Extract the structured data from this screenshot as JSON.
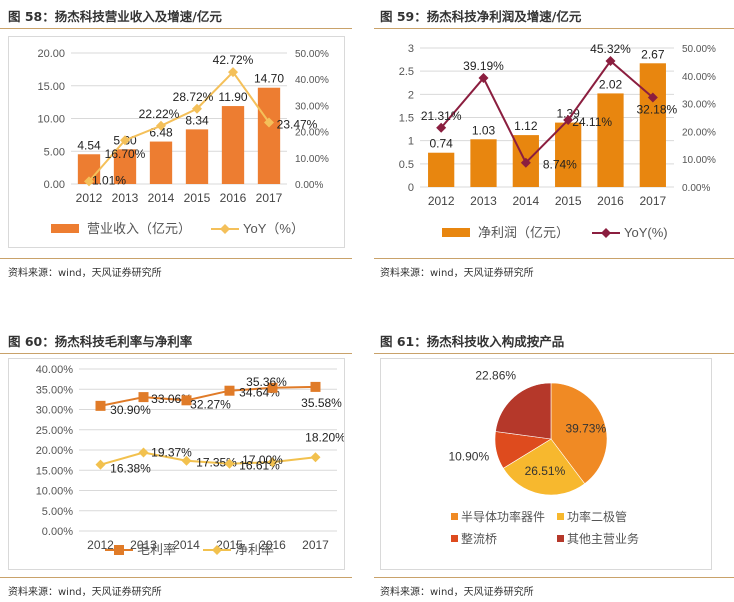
{
  "source_note": "资料来源：wind，天风证券研究所",
  "chart_data": [
    {
      "id": "fig58",
      "type": "bar",
      "title": "图 58：扬杰科技营业收入及增速/亿元",
      "categories": [
        "2012",
        "2013",
        "2014",
        "2015",
        "2016",
        "2017"
      ],
      "series": [
        {
          "name": "营业收入（亿元）",
          "kind": "bar",
          "axis": "left",
          "color": "#ED7D31",
          "values": [
            4.54,
            5.3,
            6.48,
            8.34,
            11.9,
            14.7
          ],
          "labels": [
            "4.54",
            "5.30",
            "6.48",
            "8.34",
            "11.90",
            "14.70"
          ]
        },
        {
          "name": "YoY（%）",
          "kind": "line",
          "axis": "right",
          "color": "#F4C05A",
          "values": [
            1.01,
            16.7,
            22.22,
            28.72,
            42.72,
            23.47
          ],
          "labels": [
            "1.01%",
            "16.70%",
            "22.22%",
            "28.72%",
            "42.72%",
            "23.47%"
          ]
        }
      ],
      "left_axis": {
        "ylim": [
          0,
          20
        ],
        "ticks": [
          "0.00",
          "5.00",
          "10.00",
          "15.00",
          "20.00"
        ]
      },
      "right_axis": {
        "ylim": [
          0,
          50
        ],
        "ticks": [
          "0.00%",
          "10.00%",
          "20.00%",
          "30.00%",
          "40.00%",
          "50.00%"
        ]
      },
      "grid": true,
      "legend": "bottom"
    },
    {
      "id": "fig59",
      "type": "bar",
      "title": "图 59：扬杰科技净利润及增速/亿元",
      "categories": [
        "2012",
        "2013",
        "2014",
        "2015",
        "2016",
        "2017"
      ],
      "series": [
        {
          "name": "净利润（亿元）",
          "kind": "bar",
          "axis": "left",
          "color": "#E8860F",
          "values": [
            0.74,
            1.03,
            1.12,
            1.39,
            2.02,
            2.67
          ],
          "labels": [
            "0.74",
            "1.03",
            "1.12",
            "1.39",
            "2.02",
            "2.67"
          ]
        },
        {
          "name": "YoY(%)",
          "kind": "line",
          "axis": "right",
          "color": "#8B1E3F",
          "values": [
            21.31,
            39.19,
            8.74,
            24.11,
            45.32,
            32.18
          ],
          "labels": [
            "21.31%",
            "39.19%",
            "8.74%",
            "24.11%",
            "45.32%",
            "32.18%"
          ]
        }
      ],
      "left_axis": {
        "ylim": [
          0,
          3
        ],
        "ticks": [
          "0",
          "0.5",
          "1",
          "1.5",
          "2",
          "2.5",
          "3"
        ]
      },
      "right_axis": {
        "ylim": [
          0,
          50
        ],
        "ticks": [
          "0.00%",
          "10.00%",
          "20.00%",
          "30.00%",
          "40.00%",
          "50.00%"
        ]
      },
      "grid": true,
      "legend": "bottom"
    },
    {
      "id": "fig60",
      "type": "line",
      "title": "图 60：扬杰科技毛利率与净利率",
      "categories": [
        "2012",
        "2013",
        "2014",
        "2015",
        "2016",
        "2017"
      ],
      "series": [
        {
          "name": "毛利率",
          "marker": "square",
          "color": "#E07B28",
          "values": [
            30.9,
            33.06,
            32.27,
            34.64,
            35.36,
            35.58
          ],
          "labels": [
            "30.90%",
            "33.06%",
            "32.27%",
            "34.64%",
            "35.36%",
            "35.58%"
          ]
        },
        {
          "name": "净利率",
          "marker": "diamond",
          "color": "#F2C14E",
          "values": [
            16.38,
            19.37,
            17.35,
            16.61,
            17.0,
            18.2
          ],
          "labels": [
            "16.38%",
            "19.37%",
            "17.35%",
            "16.61%",
            "17.00%",
            "18.20%"
          ]
        }
      ],
      "left_axis": {
        "ylim": [
          0,
          40
        ],
        "ticks": [
          "0.00%",
          "5.00%",
          "10.00%",
          "15.00%",
          "20.00%",
          "25.00%",
          "30.00%",
          "35.00%",
          "40.00%"
        ]
      },
      "grid": true,
      "legend": "bottom"
    },
    {
      "id": "fig61",
      "type": "pie",
      "title": "图 61：扬杰科技收入构成按产品",
      "slices": [
        {
          "name": "半导体功率器件",
          "value": 39.73,
          "label": "39.73%",
          "color": "#F08A24"
        },
        {
          "name": "功率二极管",
          "value": 26.51,
          "label": "26.51%",
          "color": "#F7B82E"
        },
        {
          "name": "整流桥",
          "value": 10.9,
          "label": "10.90%",
          "color": "#DE4B1E"
        },
        {
          "name": "其他主营业务",
          "value": 22.86,
          "label": "22.86%",
          "color": "#B5382A"
        }
      ],
      "legend": "bottom"
    }
  ]
}
